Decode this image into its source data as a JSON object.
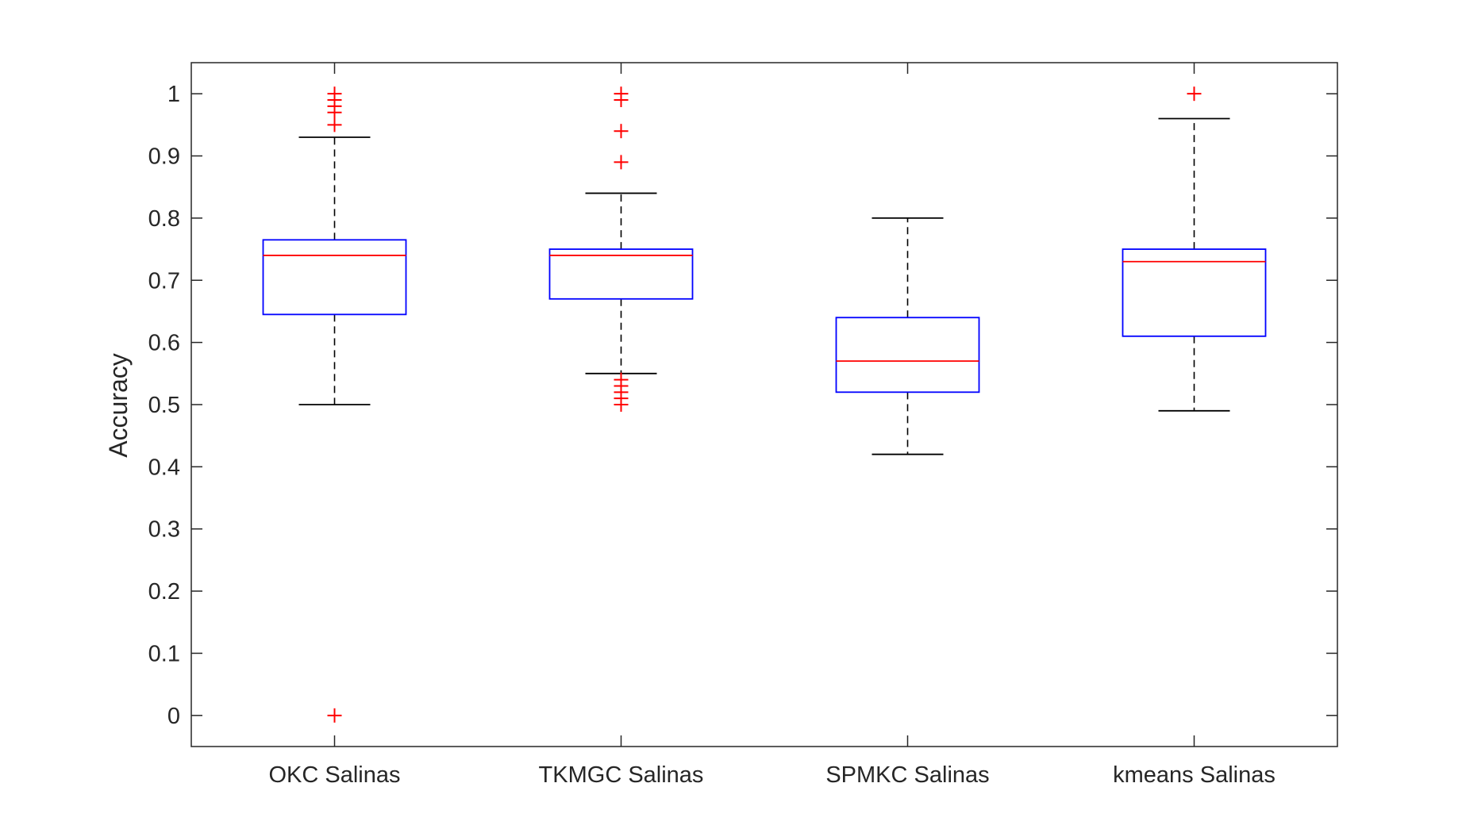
{
  "chart_data": {
    "type": "box",
    "ylabel": "Accuracy",
    "xlabel": "",
    "title": "",
    "ylim": [
      -0.05,
      1.05
    ],
    "yticks": [
      0,
      0.1,
      0.2,
      0.3,
      0.4,
      0.5,
      0.6,
      0.7,
      0.8,
      0.9,
      1
    ],
    "ytick_labels": [
      "0",
      "0.1",
      "0.2",
      "0.3",
      "0.4",
      "0.5",
      "0.6",
      "0.7",
      "0.8",
      "0.9",
      "1"
    ],
    "grid": false,
    "colors": {
      "box": "#0000ff",
      "median": "#ff0000",
      "whisker": "#000000",
      "outlier": "#ff0000",
      "axis": "#262626"
    },
    "categories": [
      "OKC Salinas",
      "TKMGC Salinas",
      "SPMKC Salinas",
      "kmeans Salinas"
    ],
    "boxes": [
      {
        "label": "OKC Salinas",
        "whisker_low": 0.5,
        "q1": 0.645,
        "median": 0.74,
        "q3": 0.765,
        "whisker_high": 0.93,
        "outliers": [
          1.0,
          0.99,
          0.98,
          0.97,
          0.95,
          0.0
        ]
      },
      {
        "label": "TKMGC Salinas",
        "whisker_low": 0.55,
        "q1": 0.67,
        "median": 0.74,
        "q3": 0.75,
        "whisker_high": 0.84,
        "outliers": [
          1.0,
          0.99,
          0.94,
          0.89,
          0.54,
          0.53,
          0.52,
          0.51,
          0.5
        ]
      },
      {
        "label": "SPMKC Salinas",
        "whisker_low": 0.42,
        "q1": 0.52,
        "median": 0.57,
        "q3": 0.64,
        "whisker_high": 0.8,
        "outliers": []
      },
      {
        "label": "kmeans Salinas",
        "whisker_low": 0.49,
        "q1": 0.61,
        "median": 0.73,
        "q3": 0.75,
        "whisker_high": 0.96,
        "outliers": [
          1.0
        ]
      }
    ]
  }
}
